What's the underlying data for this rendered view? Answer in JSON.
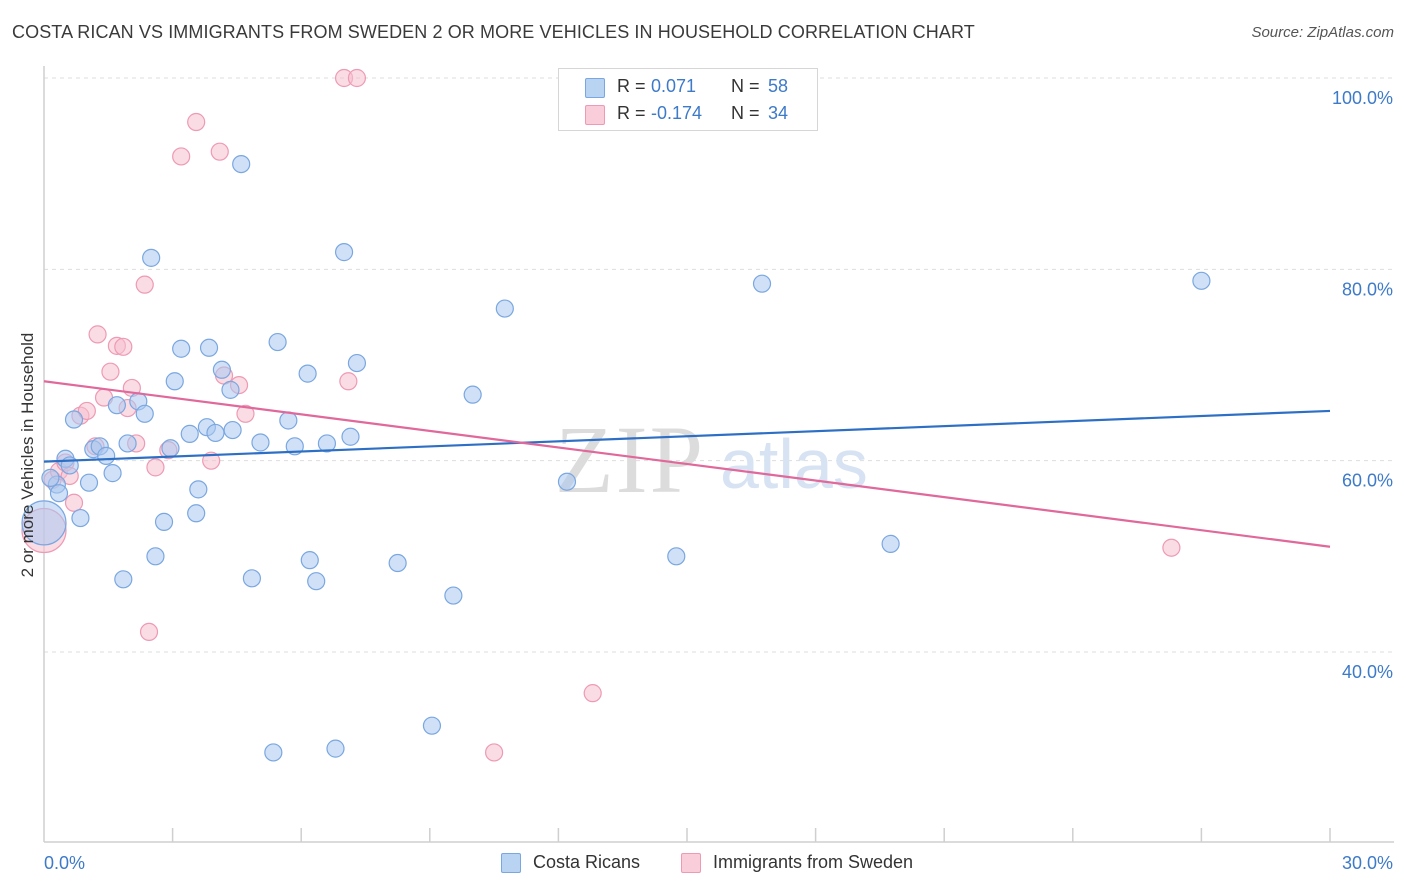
{
  "header": {
    "title": "COSTA RICAN VS IMMIGRANTS FROM SWEDEN 2 OR MORE VEHICLES IN HOUSEHOLD CORRELATION CHART",
    "source": "Source: ZipAtlas.com"
  },
  "watermark": {
    "zip": "ZIP",
    "atlas": "atlas"
  },
  "legend": {
    "rows": [
      {
        "r_label": "R =",
        "r_value": "0.071",
        "n_label": "N =",
        "n_value": "58"
      },
      {
        "r_label": "R =",
        "r_value": "-0.174",
        "n_label": "N =",
        "n_value": "34"
      }
    ]
  },
  "chart_data": {
    "type": "scatter",
    "title": "COSTA RICAN VS IMMIGRANTS FROM SWEDEN 2 OR MORE VEHICLES IN HOUSEHOLD CORRELATION CHART",
    "ylabel": "2 or more Vehicles in Household",
    "xlabel": "",
    "xlim": [
      0,
      30
    ],
    "ylim": [
      20,
      103
    ],
    "x_tick_labels": [
      "0.0%",
      "30.0%"
    ],
    "y_ticks": [
      40,
      60,
      80,
      100
    ],
    "y_tick_labels": [
      "40.0%",
      "60.0%",
      "80.0%",
      "100.0%"
    ],
    "grid": true,
    "legend_position": "top-center",
    "colors": {
      "blue_fill": "#a9c8f0",
      "blue_stroke": "#7aa7e0",
      "blue_line": "#2d6fc4",
      "pink_fill": "#f6bfd0",
      "pink_stroke": "#ee9ab4",
      "pink_line": "#e0689a",
      "tick_text": "#3d7ac8",
      "grid": "#dddddd"
    },
    "series": [
      {
        "name": "Costa Ricans",
        "color": "#a9c8f0",
        "trend": {
          "x": [
            0,
            30
          ],
          "y": [
            59.9,
            65.2
          ]
        },
        "points": [
          {
            "x": 0.0,
            "y": 53.5,
            "big": true
          },
          {
            "x": 0.3,
            "y": 57.5
          },
          {
            "x": 0.35,
            "y": 56.6
          },
          {
            "x": 0.5,
            "y": 60.2
          },
          {
            "x": 0.6,
            "y": 59.5
          },
          {
            "x": 0.7,
            "y": 64.3
          },
          {
            "x": 0.85,
            "y": 54.0
          },
          {
            "x": 1.05,
            "y": 57.7
          },
          {
            "x": 1.15,
            "y": 61.2
          },
          {
            "x": 1.3,
            "y": 61.5
          },
          {
            "x": 1.45,
            "y": 60.5
          },
          {
            "x": 1.6,
            "y": 58.7
          },
          {
            "x": 1.7,
            "y": 65.8
          },
          {
            "x": 1.85,
            "y": 47.6
          },
          {
            "x": 1.95,
            "y": 61.8
          },
          {
            "x": 2.2,
            "y": 66.2
          },
          {
            "x": 2.35,
            "y": 64.9
          },
          {
            "x": 2.5,
            "y": 81.2
          },
          {
            "x": 2.6,
            "y": 50.0
          },
          {
            "x": 2.8,
            "y": 53.6
          },
          {
            "x": 2.95,
            "y": 61.3
          },
          {
            "x": 3.05,
            "y": 68.3
          },
          {
            "x": 3.2,
            "y": 71.7
          },
          {
            "x": 3.4,
            "y": 62.8
          },
          {
            "x": 3.55,
            "y": 54.5
          },
          {
            "x": 3.6,
            "y": 57.0
          },
          {
            "x": 3.8,
            "y": 63.5
          },
          {
            "x": 3.85,
            "y": 71.8
          },
          {
            "x": 4.0,
            "y": 62.9
          },
          {
            "x": 4.15,
            "y": 69.5
          },
          {
            "x": 4.35,
            "y": 67.4
          },
          {
            "x": 4.4,
            "y": 63.2
          },
          {
            "x": 4.6,
            "y": 91.0
          },
          {
            "x": 4.85,
            "y": 47.7
          },
          {
            "x": 5.05,
            "y": 61.9
          },
          {
            "x": 5.35,
            "y": 29.5
          },
          {
            "x": 5.45,
            "y": 72.4
          },
          {
            "x": 5.7,
            "y": 64.2
          },
          {
            "x": 5.85,
            "y": 61.5
          },
          {
            "x": 6.15,
            "y": 69.1
          },
          {
            "x": 6.2,
            "y": 49.6
          },
          {
            "x": 6.35,
            "y": 47.4
          },
          {
            "x": 6.6,
            "y": 61.8
          },
          {
            "x": 6.8,
            "y": 29.9
          },
          {
            "x": 7.0,
            "y": 81.8
          },
          {
            "x": 7.15,
            "y": 62.5
          },
          {
            "x": 7.3,
            "y": 70.2
          },
          {
            "x": 8.25,
            "y": 49.3
          },
          {
            "x": 9.05,
            "y": 32.3
          },
          {
            "x": 9.55,
            "y": 45.9
          },
          {
            "x": 10.0,
            "y": 66.9
          },
          {
            "x": 10.75,
            "y": 75.9
          },
          {
            "x": 12.2,
            "y": 57.8
          },
          {
            "x": 14.75,
            "y": 50.0
          },
          {
            "x": 16.75,
            "y": 78.5
          },
          {
            "x": 19.75,
            "y": 51.3
          },
          {
            "x": 27.0,
            "y": 78.8
          },
          {
            "x": 0.15,
            "y": 58.2
          }
        ]
      },
      {
        "name": "Immigrants from Sweden",
        "color": "#f6bfd0",
        "trend": {
          "x": [
            0,
            30
          ],
          "y": [
            68.3,
            51.0
          ]
        },
        "points": [
          {
            "x": 0.0,
            "y": 52.7,
            "big": true
          },
          {
            "x": 0.2,
            "y": 58.0
          },
          {
            "x": 0.35,
            "y": 58.9
          },
          {
            "x": 0.5,
            "y": 59.8
          },
          {
            "x": 0.6,
            "y": 58.4
          },
          {
            "x": 0.7,
            "y": 55.6
          },
          {
            "x": 0.85,
            "y": 64.7
          },
          {
            "x": 1.0,
            "y": 65.2
          },
          {
            "x": 1.2,
            "y": 61.5
          },
          {
            "x": 1.25,
            "y": 73.2
          },
          {
            "x": 1.4,
            "y": 66.6
          },
          {
            "x": 1.55,
            "y": 69.3
          },
          {
            "x": 1.7,
            "y": 72.0
          },
          {
            "x": 1.85,
            "y": 71.9
          },
          {
            "x": 1.95,
            "y": 65.5
          },
          {
            "x": 2.05,
            "y": 67.6
          },
          {
            "x": 2.15,
            "y": 61.8
          },
          {
            "x": 2.35,
            "y": 78.4
          },
          {
            "x": 2.45,
            "y": 42.1
          },
          {
            "x": 2.6,
            "y": 59.3
          },
          {
            "x": 2.9,
            "y": 61.1
          },
          {
            "x": 3.2,
            "y": 91.8
          },
          {
            "x": 3.55,
            "y": 95.4
          },
          {
            "x": 3.9,
            "y": 60.0
          },
          {
            "x": 4.2,
            "y": 68.9
          },
          {
            "x": 4.1,
            "y": 92.3
          },
          {
            "x": 4.55,
            "y": 67.9
          },
          {
            "x": 4.7,
            "y": 64.9
          },
          {
            "x": 7.0,
            "y": 100.0
          },
          {
            "x": 7.3,
            "y": 100.0
          },
          {
            "x": 7.1,
            "y": 68.3
          },
          {
            "x": 12.8,
            "y": 35.7
          },
          {
            "x": 10.5,
            "y": 29.5
          },
          {
            "x": 26.3,
            "y": 50.9
          }
        ]
      }
    ]
  }
}
